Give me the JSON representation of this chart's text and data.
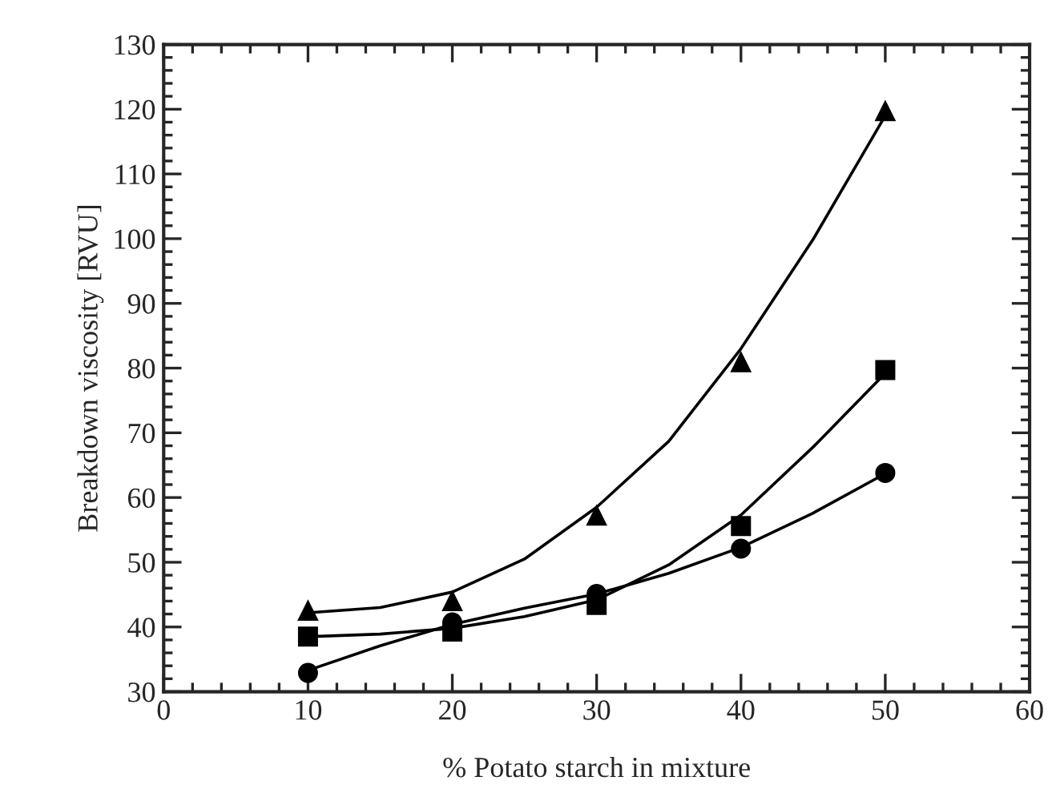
{
  "chart_data": {
    "type": "line",
    "xlabel": "% Potato starch in mixture",
    "ylabel": "Breakdown viscosity [RVU]",
    "x": [
      10,
      20,
      30,
      40,
      50
    ],
    "series": [
      {
        "color": "#000000",
        "marker": "none",
        "x": [
          10,
          15,
          20,
          25,
          30,
          35,
          40,
          45,
          50
        ],
        "values": [
          42.2,
          43,
          45.4,
          50.5,
          58.5,
          68.7,
          83,
          99.9,
          119
        ]
      },
      {
        "color": "#000000",
        "marker": "none",
        "x": [
          10,
          15,
          20,
          25,
          30,
          35,
          40,
          45,
          50
        ],
        "values": [
          38.5,
          38.9,
          39.8,
          41.6,
          44.2,
          49.6,
          57.3,
          67.8,
          79.2
        ]
      },
      {
        "color": "#000000",
        "marker": "none",
        "x": [
          10,
          15,
          20,
          25,
          30,
          35,
          40,
          45,
          50
        ],
        "values": [
          33.3,
          37.1,
          40.4,
          42.9,
          45.1,
          48.3,
          52.3,
          57.6,
          63.7
        ]
      },
      {
        "type": "scatter",
        "color": "#000000",
        "marker": "triangle",
        "values": [
          42.5,
          44,
          57.2,
          80.9,
          119.7
        ]
      },
      {
        "type": "scatter",
        "color": "#000000",
        "marker": "square",
        "values": [
          38.5,
          39.3,
          43.4,
          55.6,
          79.7
        ]
      },
      {
        "type": "scatter",
        "color": "#000000",
        "marker": "circle",
        "values": [
          32.9,
          40.7,
          45.1,
          52.1,
          63.8
        ]
      }
    ],
    "xlim": [
      0,
      60
    ],
    "xticks": [
      0,
      10,
      20,
      30,
      40,
      50,
      60
    ],
    "ylim": [
      30,
      130
    ],
    "yticks": [
      30,
      40,
      50,
      60,
      70,
      80,
      90,
      100,
      110,
      120,
      130
    ],
    "grid": false,
    "legend": false,
    "line_style": "solid"
  }
}
